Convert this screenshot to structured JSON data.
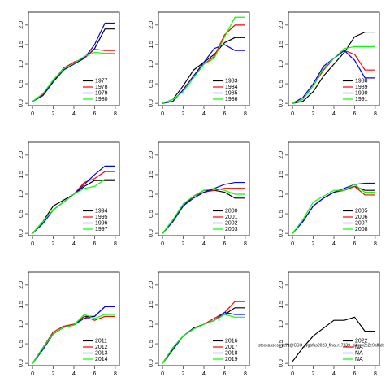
{
  "chart_data": [
    {
      "type": "line",
      "x": [
        0,
        1,
        2,
        3,
        4,
        5,
        6,
        7,
        8
      ],
      "xlim": [
        -0.4,
        8.4
      ],
      "xticks": [
        0,
        2,
        4,
        6,
        8
      ],
      "ylim": [
        -0.06,
        2.33
      ],
      "yticks": [
        {
          "value": 0,
          "label": "0.0"
        },
        {
          "value": 0.5,
          "label": "0.5"
        },
        {
          "value": 1,
          "label": "1.0"
        },
        {
          "value": 1.5,
          "label": "1.5"
        },
        {
          "value": 2,
          "label": "2.0"
        }
      ],
      "legend": "bottomright",
      "series": [
        {
          "name": "1977",
          "color": "#000000",
          "values": [
            0.05,
            0.2,
            0.55,
            0.85,
            1.05,
            1.15,
            1.4,
            1.9,
            1.9
          ]
        },
        {
          "name": "1978",
          "color": "#ff0000",
          "values": [
            0.05,
            0.22,
            0.58,
            0.9,
            1.05,
            1.15,
            1.38,
            1.35,
            1.35
          ]
        },
        {
          "name": "1979",
          "color": "#0000ff",
          "values": [
            0.05,
            0.2,
            0.55,
            0.85,
            1.0,
            1.15,
            1.5,
            2.05,
            2.05
          ]
        },
        {
          "name": "1980",
          "color": "#00ff00",
          "values": [
            0.05,
            0.25,
            0.6,
            0.88,
            1.02,
            1.2,
            1.3,
            1.28,
            1.28
          ]
        }
      ]
    },
    {
      "type": "line",
      "x": [
        0,
        1,
        2,
        3,
        4,
        5,
        6,
        7,
        8
      ],
      "xlim": [
        -0.4,
        8.4
      ],
      "xticks": [
        0,
        2,
        4,
        6,
        8
      ],
      "ylim": [
        -0.06,
        2.33
      ],
      "yticks": [
        {
          "value": 0,
          "label": "0.0"
        },
        {
          "value": 0.5,
          "label": "0.5"
        },
        {
          "value": 1,
          "label": "1.0"
        },
        {
          "value": 1.5,
          "label": "1.5"
        },
        {
          "value": 2,
          "label": "2.0"
        }
      ],
      "legend": "bottomright",
      "series": [
        {
          "name": "1983",
          "color": "#000000",
          "values": [
            0,
            0.1,
            0.45,
            0.85,
            1.05,
            1.25,
            1.55,
            1.68,
            1.68
          ]
        },
        {
          "name": "1984",
          "color": "#ff0000",
          "values": [
            0,
            0.05,
            0.35,
            0.7,
            1.0,
            1.2,
            1.75,
            2.0,
            2.0
          ]
        },
        {
          "name": "1985",
          "color": "#0000ff",
          "values": [
            0,
            0.05,
            0.35,
            0.7,
            1.05,
            1.4,
            1.5,
            1.35,
            1.35
          ]
        },
        {
          "name": "1986",
          "color": "#00ff00",
          "values": [
            0,
            0.1,
            0.3,
            0.65,
            1.0,
            1.15,
            1.7,
            2.2,
            2.2
          ]
        }
      ]
    },
    {
      "type": "line",
      "x": [
        0,
        1,
        2,
        3,
        4,
        5,
        6,
        7,
        8
      ],
      "xlim": [
        -0.4,
        8.4
      ],
      "xticks": [
        0,
        2,
        4,
        6,
        8
      ],
      "ylim": [
        -0.06,
        2.33
      ],
      "yticks": [
        {
          "value": 0,
          "label": "0.0"
        },
        {
          "value": 0.5,
          "label": "0.5"
        },
        {
          "value": 1,
          "label": "1.0"
        },
        {
          "value": 1.5,
          "label": "1.5"
        },
        {
          "value": 2,
          "label": "2.0"
        }
      ],
      "legend": "bottomright",
      "series": [
        {
          "name": "1988",
          "color": "#000000",
          "values": [
            0,
            0.05,
            0.3,
            0.7,
            1.0,
            1.3,
            1.7,
            1.82,
            1.82
          ]
        },
        {
          "name": "1989",
          "color": "#ff0000",
          "values": [
            0,
            0.1,
            0.45,
            0.85,
            1.15,
            1.35,
            1.25,
            0.85,
            0.85
          ]
        },
        {
          "name": "1990",
          "color": "#0000ff",
          "values": [
            0,
            0.15,
            0.5,
            0.95,
            1.15,
            1.35,
            1.1,
            0.65,
            0.65
          ]
        },
        {
          "name": "1991",
          "color": "#00ff00",
          "values": [
            0,
            0.1,
            0.45,
            0.9,
            1.15,
            1.4,
            1.45,
            1.45,
            1.45
          ]
        }
      ]
    },
    {
      "type": "line",
      "x": [
        0,
        1,
        2,
        3,
        4,
        5,
        6,
        7,
        8
      ],
      "xlim": [
        -0.4,
        8.4
      ],
      "xticks": [
        0,
        2,
        4,
        6,
        8
      ],
      "ylim": [
        -0.06,
        2.33
      ],
      "yticks": [
        {
          "value": 0,
          "label": "0.0"
        },
        {
          "value": 0.5,
          "label": "0.5"
        },
        {
          "value": 1,
          "label": "1.0"
        },
        {
          "value": 1.5,
          "label": "1.5"
        },
        {
          "value": 2,
          "label": "2.0"
        }
      ],
      "legend": "bottomright",
      "series": [
        {
          "name": "1994",
          "color": "#000000",
          "values": [
            0,
            0.3,
            0.7,
            0.85,
            1.0,
            1.2,
            1.35,
            1.35,
            1.35
          ]
        },
        {
          "name": "1995",
          "color": "#ff0000",
          "values": [
            0,
            0.25,
            0.6,
            0.8,
            1.0,
            1.3,
            1.4,
            1.58,
            1.58
          ]
        },
        {
          "name": "1996",
          "color": "#0000ff",
          "values": [
            0,
            0.25,
            0.6,
            0.8,
            1.0,
            1.25,
            1.5,
            1.72,
            1.72
          ]
        },
        {
          "name": "1997",
          "color": "#00ff00",
          "values": [
            0,
            0.3,
            0.6,
            0.8,
            1.0,
            1.15,
            1.2,
            1.38,
            1.38
          ]
        }
      ]
    },
    {
      "type": "line",
      "x": [
        0,
        1,
        2,
        3,
        4,
        5,
        6,
        7,
        8
      ],
      "xlim": [
        -0.4,
        8.4
      ],
      "xticks": [
        0,
        2,
        4,
        6,
        8
      ],
      "ylim": [
        -0.06,
        2.33
      ],
      "yticks": [
        {
          "value": 0,
          "label": "0.0"
        },
        {
          "value": 0.5,
          "label": "0.5"
        },
        {
          "value": 1,
          "label": "1.0"
        },
        {
          "value": 1.5,
          "label": "1.5"
        },
        {
          "value": 2,
          "label": "2.0"
        }
      ],
      "legend": "bottomright",
      "series": [
        {
          "name": "2000",
          "color": "#000000",
          "values": [
            0,
            0.3,
            0.7,
            0.95,
            1.1,
            1.1,
            1.05,
            0.9,
            0.9
          ]
        },
        {
          "name": "2001",
          "color": "#ff0000",
          "values": [
            0,
            0.3,
            0.75,
            0.95,
            1.05,
            1.1,
            1.15,
            1.15,
            1.15
          ]
        },
        {
          "name": "2002",
          "color": "#0000ff",
          "values": [
            0,
            0.3,
            0.7,
            0.9,
            1.05,
            1.15,
            1.25,
            1.3,
            1.3
          ]
        },
        {
          "name": "2003",
          "color": "#00ff00",
          "values": [
            0,
            0.35,
            0.75,
            0.95,
            1.1,
            1.15,
            1.1,
            1.0,
            1.0
          ]
        }
      ]
    },
    {
      "type": "line",
      "x": [
        0,
        1,
        2,
        3,
        4,
        5,
        6,
        7,
        8
      ],
      "xlim": [
        -0.4,
        8.4
      ],
      "xticks": [
        0,
        2,
        4,
        6,
        8
      ],
      "ylim": [
        -0.06,
        2.33
      ],
      "yticks": [
        {
          "value": 0,
          "label": "0.0"
        },
        {
          "value": 0.5,
          "label": "0.5"
        },
        {
          "value": 1,
          "label": "1.0"
        },
        {
          "value": 1.5,
          "label": "1.5"
        },
        {
          "value": 2,
          "label": "2.0"
        }
      ],
      "legend": "bottomright",
      "series": [
        {
          "name": "2005",
          "color": "#000000",
          "values": [
            0,
            0.3,
            0.7,
            0.9,
            1.05,
            1.1,
            1.2,
            1.1,
            1.1
          ]
        },
        {
          "name": "2006",
          "color": "#ff0000",
          "values": [
            0,
            0.3,
            0.7,
            0.9,
            1.05,
            1.1,
            1.2,
            0.98,
            0.98
          ]
        },
        {
          "name": "2007",
          "color": "#0000ff",
          "values": [
            0,
            0.3,
            0.7,
            0.9,
            1.05,
            1.15,
            1.25,
            1.28,
            1.28
          ]
        },
        {
          "name": "2008",
          "color": "#00ff00",
          "values": [
            0,
            0.35,
            0.8,
            0.95,
            1.1,
            1.1,
            1.25,
            1.05,
            1.05
          ]
        }
      ]
    },
    {
      "type": "line",
      "x": [
        0,
        1,
        2,
        3,
        4,
        5,
        6,
        7,
        8
      ],
      "xlim": [
        -0.4,
        8.4
      ],
      "xticks": [
        0,
        2,
        4,
        6,
        8
      ],
      "ylim": [
        -0.06,
        2.33
      ],
      "yticks": [
        {
          "value": 0,
          "label": "0.0"
        },
        {
          "value": 0.5,
          "label": "0.5"
        },
        {
          "value": 1,
          "label": "1.0"
        },
        {
          "value": 1.5,
          "label": "1.5"
        },
        {
          "value": 2,
          "label": "2.0"
        }
      ],
      "legend": "bottomright",
      "series": [
        {
          "name": "2011",
          "color": "#000000",
          "values": [
            0,
            0.4,
            0.75,
            0.92,
            0.98,
            1.2,
            1.2,
            1.45,
            1.45
          ]
        },
        {
          "name": "2012",
          "color": "#ff0000",
          "values": [
            0,
            0.4,
            0.8,
            0.95,
            1.0,
            1.2,
            1.1,
            1.2,
            1.2
          ]
        },
        {
          "name": "2013",
          "color": "#0000ff",
          "values": [
            0,
            0.35,
            0.75,
            0.92,
            0.98,
            1.15,
            1.2,
            1.45,
            1.45
          ]
        },
        {
          "name": "2014",
          "color": "#00ff00",
          "values": [
            0,
            0.4,
            0.75,
            0.92,
            0.98,
            1.25,
            1.15,
            1.25,
            1.25
          ]
        }
      ]
    },
    {
      "type": "line",
      "x": [
        0,
        1,
        2,
        3,
        4,
        5,
        6,
        7,
        8
      ],
      "xlim": [
        -0.4,
        8.4
      ],
      "xticks": [
        0,
        2,
        4,
        6,
        8
      ],
      "ylim": [
        -0.06,
        2.33
      ],
      "yticks": [
        {
          "value": 0,
          "label": "0.0"
        },
        {
          "value": 0.5,
          "label": "0.5"
        },
        {
          "value": 1,
          "label": "1.0"
        },
        {
          "value": 1.5,
          "label": "1.5"
        },
        {
          "value": 2,
          "label": "2.0"
        }
      ],
      "legend": "bottomright",
      "series": [
        {
          "name": "2016",
          "color": "#000000",
          "values": [
            0,
            0.4,
            0.7,
            0.9,
            1.0,
            1.1,
            1.25,
            1.42,
            1.42
          ]
        },
        {
          "name": "2017",
          "color": "#ff0000",
          "values": [
            0,
            0.35,
            0.7,
            0.88,
            1.0,
            1.15,
            1.3,
            1.58,
            1.58
          ]
        },
        {
          "name": "2018",
          "color": "#0000ff",
          "values": [
            0,
            0.35,
            0.7,
            0.88,
            1.0,
            1.1,
            1.3,
            1.25,
            1.25
          ]
        },
        {
          "name": "2019",
          "color": "#00ff00",
          "values": [
            0,
            0.4,
            0.7,
            0.88,
            1.0,
            1.1,
            1.25,
            1.18,
            1.18
          ]
        }
      ]
    },
    {
      "type": "line",
      "x": [
        0,
        1,
        2,
        3,
        4,
        5,
        6,
        7,
        8
      ],
      "xlim": [
        -0.4,
        8.4
      ],
      "xticks": [
        0,
        2,
        4,
        6,
        8
      ],
      "ylim": [
        -0.06,
        2.33
      ],
      "yticks": [
        {
          "value": 0,
          "label": "0.0"
        },
        {
          "value": 0.5,
          "label": "0.5"
        },
        {
          "value": 1,
          "label": "1.0"
        },
        {
          "value": 1.5,
          "label": "1.5"
        },
        {
          "value": 2,
          "label": "2.0"
        }
      ],
      "legend": "bottomright",
      "annotation": "stockassessment@CSO_wgbfas2023_final.r17339_git.rev2c2e9afbde",
      "series": [
        {
          "name": "2022",
          "color": "#000000",
          "values": [
            0.05,
            0.4,
            0.7,
            0.9,
            1.1,
            1.1,
            1.18,
            0.82,
            0.82
          ]
        },
        {
          "name": "NA",
          "color": "#ff0000",
          "values": [
            null,
            null,
            null,
            null,
            null,
            null,
            null,
            null,
            null
          ]
        },
        {
          "name": "NA",
          "color": "#0000ff",
          "values": [
            null,
            null,
            null,
            null,
            null,
            null,
            null,
            null,
            null
          ]
        },
        {
          "name": "NA",
          "color": "#00ff00",
          "values": [
            null,
            null,
            null,
            null,
            null,
            null,
            null,
            null,
            null
          ]
        }
      ]
    }
  ]
}
